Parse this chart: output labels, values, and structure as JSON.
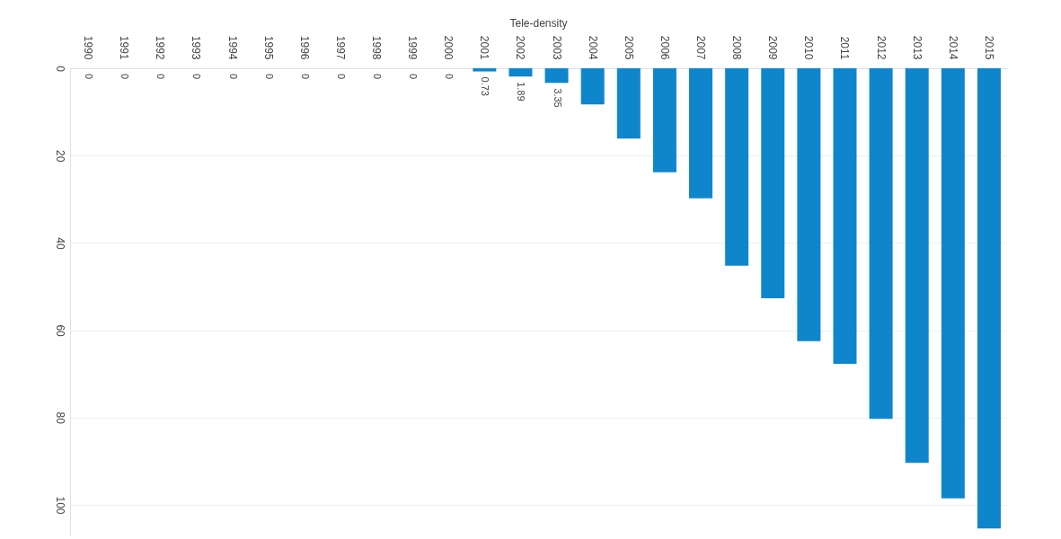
{
  "chart_data": {
    "type": "bar",
    "title": "Tele-density",
    "categories": [
      "1990",
      "1991",
      "1992",
      "1993",
      "1994",
      "1995",
      "1996",
      "1997",
      "1998",
      "1999",
      "2000",
      "2001",
      "2002",
      "2003",
      "2004",
      "2005",
      "2006",
      "2007",
      "2008",
      "2009",
      "2010",
      "2011",
      "2012",
      "2013",
      "2014",
      "2015"
    ],
    "values": [
      0,
      0,
      0,
      0,
      0,
      0,
      0,
      0,
      0,
      0,
      0,
      0.73,
      1.89,
      3.35,
      8.3,
      16.1,
      23.8,
      29.8,
      45.2,
      52.7,
      62.5,
      67.7,
      80.3,
      90.4,
      98.5,
      105.4
    ],
    "value_labels": [
      "0",
      "0",
      "0",
      "0",
      "0",
      "0",
      "0",
      "0",
      "0",
      "0",
      "0",
      "0.73",
      "1.89",
      "3.35",
      null,
      null,
      null,
      null,
      null,
      null,
      null,
      null,
      null,
      null,
      null,
      null
    ],
    "color": "#0f86cc",
    "ylim": [
      107,
      0
    ],
    "yticks": [
      0,
      20,
      40,
      60,
      80,
      100
    ],
    "grid": "y"
  }
}
